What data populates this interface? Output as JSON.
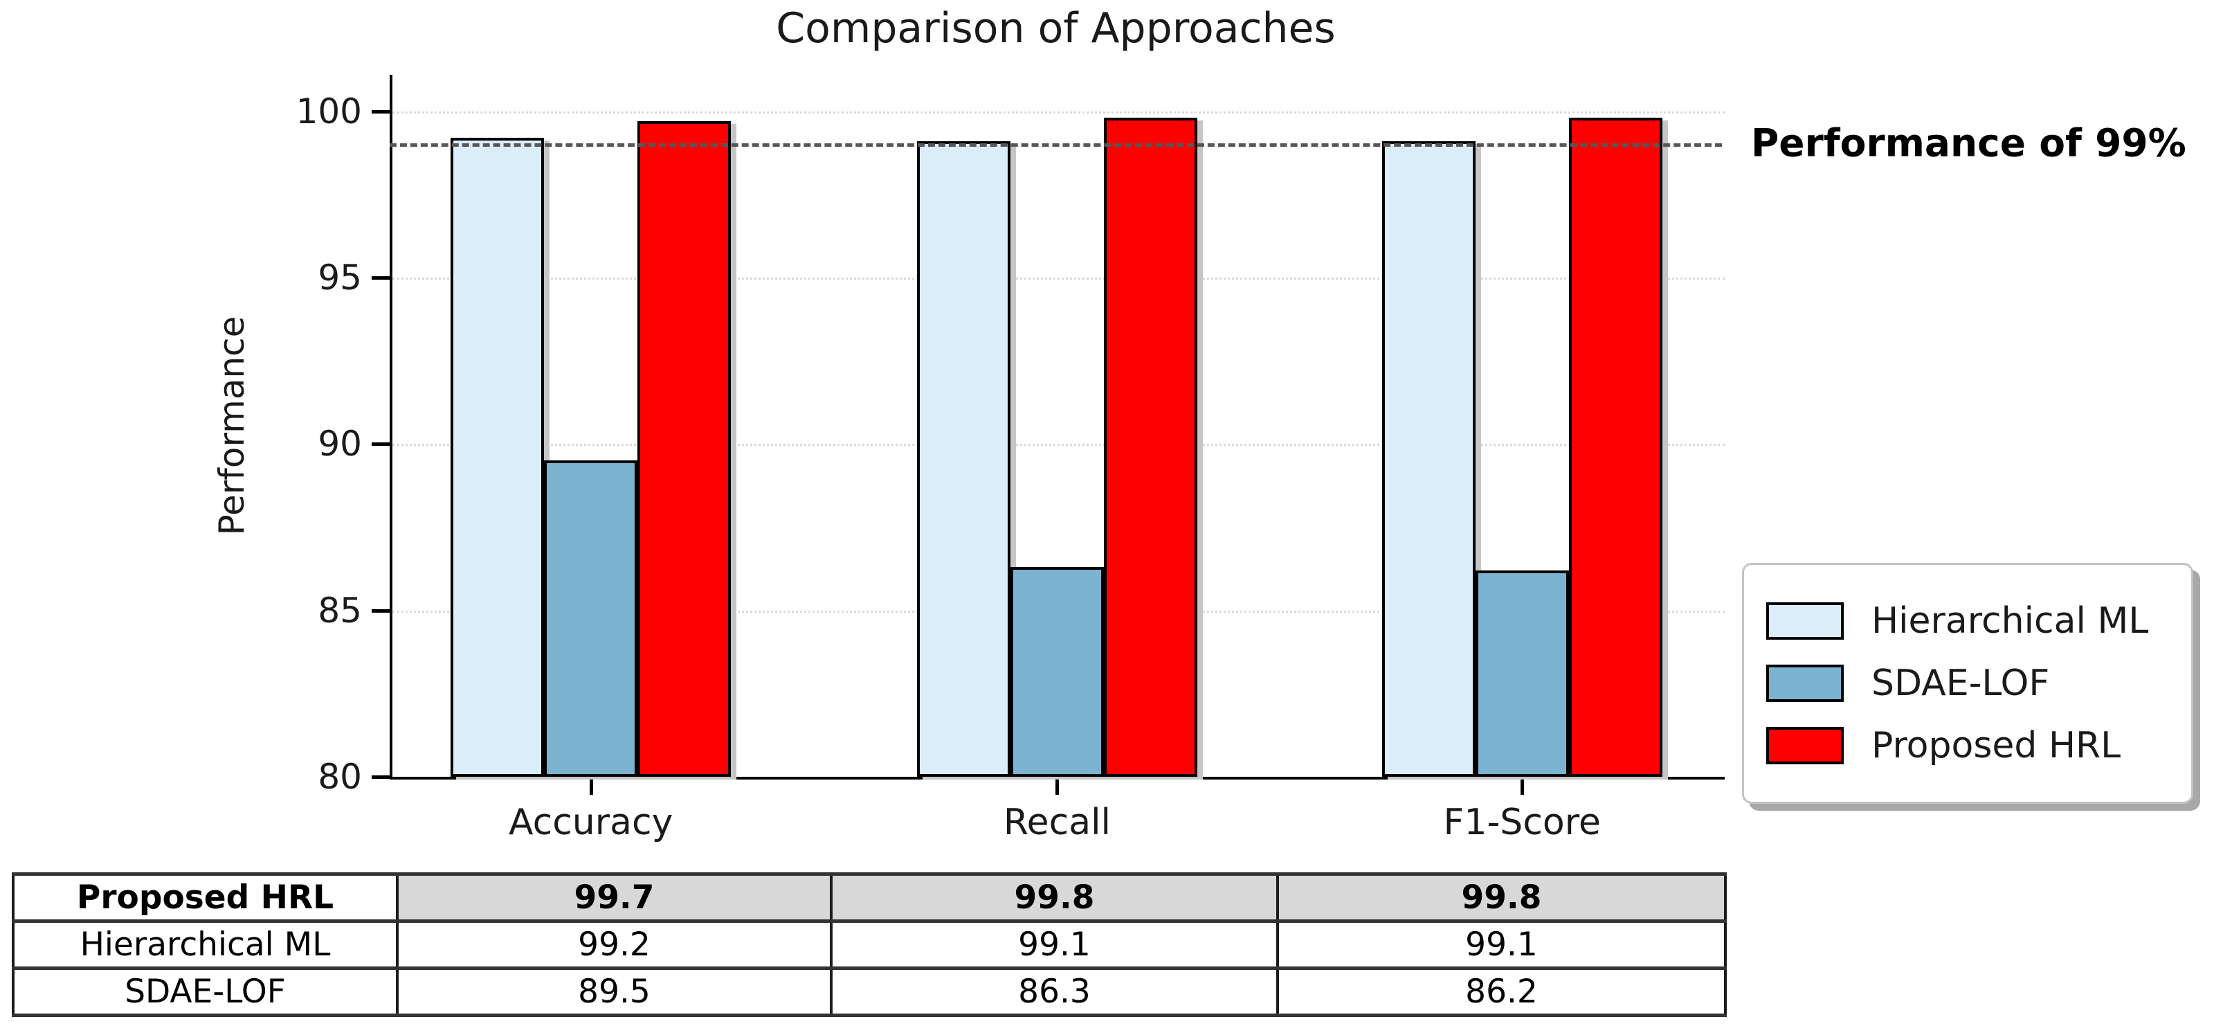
{
  "chart_data": {
    "type": "bar",
    "title": "Comparison of Approaches",
    "ylabel": "Performance",
    "xlabel": "",
    "categories": [
      "Accuracy",
      "Recall",
      "F1-Score"
    ],
    "series": [
      {
        "name": "Hierarchical ML",
        "color": "#DBEDF9",
        "values": [
          99.2,
          99.1,
          99.1
        ]
      },
      {
        "name": "SDAE-LOF",
        "color": "#7BB3D0",
        "values": [
          89.5,
          86.3,
          86.2
        ]
      },
      {
        "name": "Proposed HRL",
        "color": "#FE0000",
        "values": [
          99.7,
          99.8,
          99.8
        ]
      }
    ],
    "ylim": [
      80,
      101.1
    ],
    "yticks": [
      80,
      85,
      90,
      95,
      100
    ],
    "grid": "horizontal dotted",
    "legend_position": "right of plot, lower",
    "threshold": {
      "value": 99,
      "label": "Performance of 99%",
      "style": "dashed gray line"
    }
  },
  "table": {
    "rows": [
      {
        "label": "Proposed HRL",
        "values": [
          "99.7",
          "99.8",
          "99.8"
        ],
        "highlight": true
      },
      {
        "label": "Hierarchical ML",
        "values": [
          "99.2",
          "99.1",
          "99.1"
        ],
        "highlight": false
      },
      {
        "label": "SDAE-LOF",
        "values": [
          "89.5",
          "86.3",
          "86.2"
        ],
        "highlight": false
      }
    ]
  },
  "colors": {
    "bar_edge": "#000000",
    "bar_shadow": "#c6c6c6",
    "gridline": "#d9d9d9",
    "threshold_line": "#575757",
    "table_header_bg": "#d8d8d8"
  }
}
